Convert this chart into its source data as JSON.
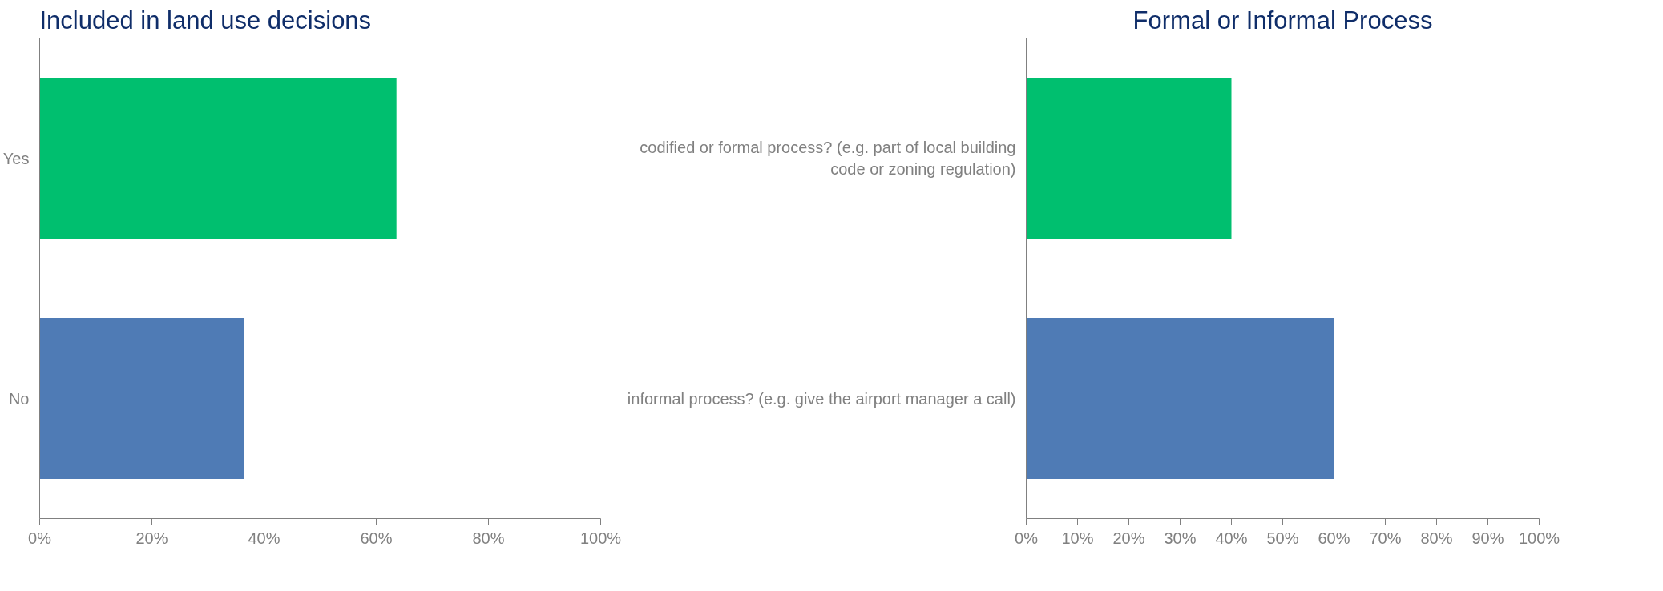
{
  "chart_data": [
    {
      "type": "bar",
      "orientation": "horizontal",
      "title": "Included in land use decisions",
      "categories": [
        "Yes",
        "No"
      ],
      "values": [
        63.6,
        36.4
      ],
      "colors": [
        "#00bf6f",
        "#4f7bb5"
      ],
      "xlim": [
        0,
        100
      ],
      "xticks": [
        {
          "value": 0,
          "label": "0%"
        },
        {
          "value": 20,
          "label": "20%"
        },
        {
          "value": 40,
          "label": "40%"
        },
        {
          "value": 60,
          "label": "60%"
        },
        {
          "value": 80,
          "label": "80%"
        },
        {
          "value": 100,
          "label": "100%"
        }
      ],
      "grid": false
    },
    {
      "type": "bar",
      "orientation": "horizontal",
      "title": "Formal or Informal Process",
      "categories": [
        "codified or formal process? (e.g. part of local building code or zoning regulation)",
        "informal process? (e.g. give the airport manager a call)"
      ],
      "values": [
        40,
        60
      ],
      "colors": [
        "#00bf6f",
        "#4f7bb5"
      ],
      "xlim": [
        0,
        100
      ],
      "xticks": [
        {
          "value": 0,
          "label": "0%"
        },
        {
          "value": 10,
          "label": "10%"
        },
        {
          "value": 20,
          "label": "20%"
        },
        {
          "value": 30,
          "label": "30%"
        },
        {
          "value": 40,
          "label": "40%"
        },
        {
          "value": 50,
          "label": "50%"
        },
        {
          "value": 60,
          "label": "60%"
        },
        {
          "value": 70,
          "label": "70%"
        },
        {
          "value": 80,
          "label": "80%"
        },
        {
          "value": 90,
          "label": "90%"
        },
        {
          "value": 100,
          "label": "100%"
        }
      ],
      "grid": false
    }
  ]
}
